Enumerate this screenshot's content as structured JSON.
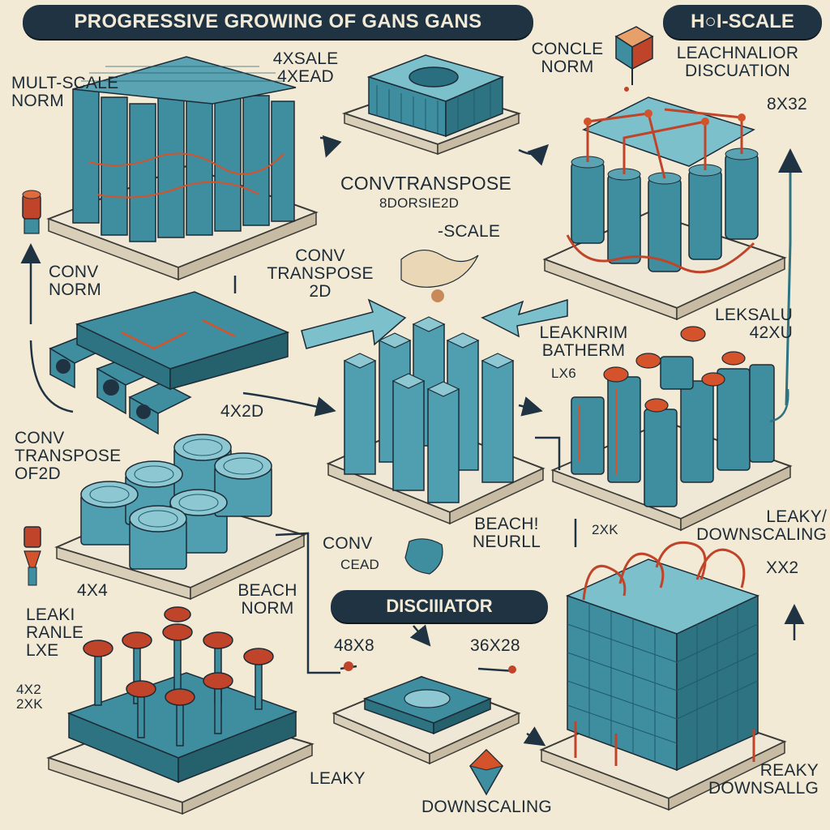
{
  "banners": {
    "title": "PROGRESSIVE GROWING OF GANS GANS",
    "scale": "H○I-SCALE",
    "discriminator": "DISCIIIATOR"
  },
  "labels": {
    "multi_scale_norm": "MULT-SCALE\nNORM",
    "scale_4x": "4XSALE\n4XEAD",
    "concle_norm": "CONCLE\nNORM",
    "leachnalior": "LEACHNALIOR\nDISCUATION",
    "size_8x32": "8X32",
    "convtranspose": "CONVTRANSPOSE",
    "convtranspose_sub": "8DORSIE2D",
    "scale_mid": "-SCALE",
    "conv_norm": "CONV\nNORM",
    "conv_transpose_2d": "CONV\nTRANSPOSE\n2D",
    "leksalu": "LEKSALU\n42XU",
    "leaknorm": "LEAKNRIM\nBATHERM",
    "leaknorm_sub": "LX6",
    "size_4x2d": "4X2D",
    "conv_transpose_of_2d": "CONV\nTRANSPOSE\nOF2D",
    "conv_bottom": "CONV",
    "conv_bottom_sub": "CEAD",
    "beach_neurll": "BEACH!\nNEURLL",
    "leaky_downscaling": "LEAKY/\nDOWNSCALING",
    "size_xx2": "XX2",
    "size_2xk": "2XK",
    "size_4x4": "4X4",
    "beach_norm": "BEACH\nNORM",
    "leaki_ranle": "LEAKI\nRANLE\nLXE",
    "size_4x2_left": "4X2\n2XK",
    "size_48x8": "48X8",
    "size_36x28": "36X28",
    "leaky": "LEAKY",
    "downscaling": "DOWNSCALING",
    "reaky_downsallg": "REAKY\nDOWNSALLG"
  },
  "colors": {
    "background": "#f3ead6",
    "platform": "#efe8d6",
    "platform_edge": "#3b3a36",
    "teal": "#3f8ea0",
    "teal_light": "#7cc0cc",
    "teal_dark": "#1f5a6a",
    "accent": "#d4532a",
    "ink": "#1d2b36"
  }
}
